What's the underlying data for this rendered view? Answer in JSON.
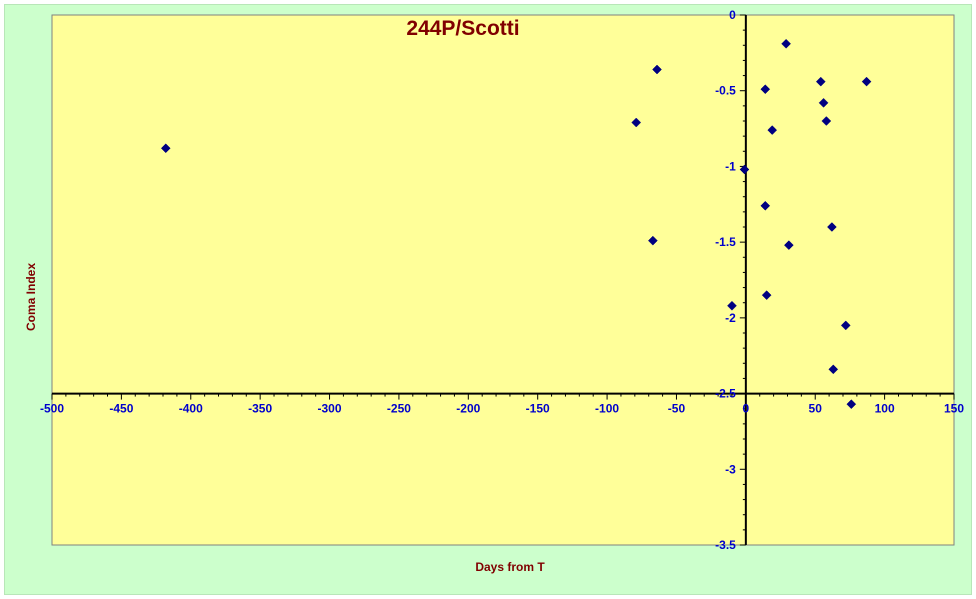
{
  "chart_data": {
    "type": "scatter",
    "title": "244P/Scotti",
    "xlabel": "Days from T",
    "ylabel": "Coma Index",
    "xlim": [
      -500,
      150
    ],
    "ylim": [
      -3.5,
      0
    ],
    "x_major_step": 50,
    "y_major_step": 0.5,
    "x_ticks": [
      "-500",
      "-450",
      "-400",
      "-350",
      "-300",
      "-250",
      "-200",
      "-150",
      "-100",
      "-50",
      "0",
      "50",
      "100",
      "150"
    ],
    "y_ticks": [
      "0",
      "-0.5",
      "-1",
      "-1.5",
      "-2",
      "-2.5",
      "-3",
      "-3.5"
    ],
    "x_axis_crosses_y": -2.5,
    "y_axis_crosses_x": 0,
    "grid": false,
    "legend": "none",
    "colors": {
      "plot_background": "#ffff99",
      "chart_background": "#ccffcc",
      "marker": "#000080",
      "title": "#800000",
      "axis_title": "#800000",
      "tick_label": "#0000cc",
      "axis_line": "#000000"
    },
    "series": [
      {
        "marker": "diamond",
        "points": [
          {
            "x": -418,
            "y": -0.88
          },
          {
            "x": -79,
            "y": -0.71
          },
          {
            "x": -64,
            "y": -0.36
          },
          {
            "x": -67,
            "y": -1.49
          },
          {
            "x": -1,
            "y": -1.02
          },
          {
            "x": -10,
            "y": -1.92
          },
          {
            "x": 14,
            "y": -0.49
          },
          {
            "x": 19,
            "y": -0.76
          },
          {
            "x": 14,
            "y": -1.26
          },
          {
            "x": 15,
            "y": -1.85
          },
          {
            "x": 29,
            "y": -0.19
          },
          {
            "x": 31,
            "y": -1.52
          },
          {
            "x": 54,
            "y": -0.44
          },
          {
            "x": 56,
            "y": -0.58
          },
          {
            "x": 58,
            "y": -0.7
          },
          {
            "x": 62,
            "y": -1.4
          },
          {
            "x": 63,
            "y": -2.34
          },
          {
            "x": 72,
            "y": -2.05
          },
          {
            "x": 76,
            "y": -2.57
          },
          {
            "x": 87,
            "y": -0.44
          }
        ]
      }
    ]
  }
}
